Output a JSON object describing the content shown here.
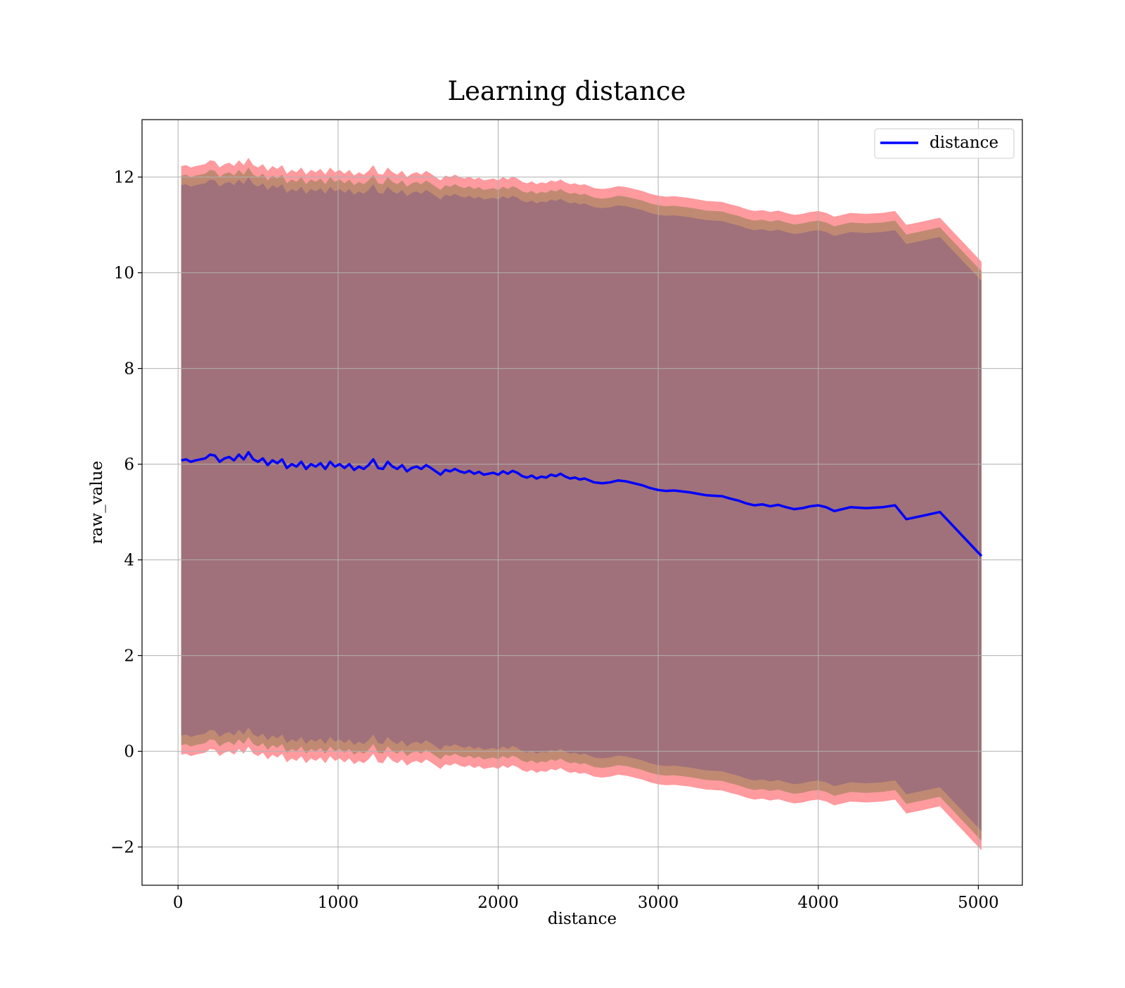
{
  "chart_data": {
    "type": "area",
    "title": "Learning distance",
    "xlabel": "distance",
    "ylabel": "raw_value",
    "xlim": [
      -225,
      5275
    ],
    "ylim": [
      -2.8,
      13.2
    ],
    "xticks": [
      0,
      1000,
      2000,
      3000,
      4000,
      5000
    ],
    "xtick_labels": [
      "0",
      "1000",
      "2000",
      "3000",
      "4000",
      "5000"
    ],
    "yticks": [
      -2,
      0,
      2,
      4,
      6,
      8,
      10,
      12
    ],
    "ytick_labels": [
      "−2",
      "0",
      "2",
      "4",
      "6",
      "8",
      "10",
      "12"
    ],
    "grid": true,
    "legend": {
      "position": "top-right",
      "entries": [
        "distance"
      ]
    },
    "colors": {
      "line": "#0000ff",
      "band_outer": "#ff9a9f",
      "band_middle": "#c08a72",
      "band_inner": "#a0717a",
      "grid": "#b0b0b0"
    },
    "band_offsets": {
      "outer": 6.15,
      "middle": 5.95,
      "inner": 5.75
    },
    "series": [
      {
        "name": "distance",
        "x": [
          20,
          50,
          80,
          110,
          140,
          170,
          200,
          230,
          260,
          290,
          320,
          350,
          380,
          410,
          440,
          470,
          500,
          530,
          560,
          590,
          620,
          650,
          680,
          710,
          740,
          770,
          800,
          830,
          860,
          890,
          920,
          950,
          980,
          1010,
          1040,
          1070,
          1100,
          1130,
          1160,
          1190,
          1220,
          1250,
          1280,
          1310,
          1340,
          1370,
          1400,
          1430,
          1460,
          1490,
          1520,
          1550,
          1580,
          1610,
          1640,
          1670,
          1700,
          1730,
          1760,
          1790,
          1820,
          1850,
          1880,
          1910,
          1940,
          1970,
          2000,
          2030,
          2060,
          2090,
          2120,
          2150,
          2180,
          2210,
          2240,
          2270,
          2300,
          2330,
          2360,
          2390,
          2420,
          2450,
          2480,
          2510,
          2540,
          2570,
          2600,
          2650,
          2700,
          2750,
          2800,
          2850,
          2900,
          2950,
          3000,
          3050,
          3100,
          3150,
          3200,
          3250,
          3300,
          3350,
          3400,
          3450,
          3500,
          3550,
          3600,
          3650,
          3700,
          3750,
          3800,
          3850,
          3900,
          3950,
          4000,
          4050,
          4100,
          4150,
          4200,
          4300,
          4400,
          4480,
          4550,
          4650,
          4760,
          5020
        ],
        "values": [
          6.08,
          6.1,
          6.05,
          6.08,
          6.1,
          6.12,
          6.2,
          6.18,
          6.05,
          6.12,
          6.15,
          6.08,
          6.2,
          6.1,
          6.25,
          6.1,
          6.05,
          6.12,
          5.98,
          6.08,
          6.02,
          6.1,
          5.92,
          6.0,
          5.95,
          6.05,
          5.9,
          6.0,
          5.95,
          6.02,
          5.9,
          6.05,
          5.95,
          6.0,
          5.92,
          6.0,
          5.88,
          5.95,
          5.9,
          5.98,
          6.1,
          5.92,
          5.9,
          6.05,
          5.95,
          5.9,
          5.98,
          5.85,
          5.92,
          5.95,
          5.9,
          5.98,
          5.92,
          5.85,
          5.78,
          5.88,
          5.85,
          5.9,
          5.85,
          5.82,
          5.86,
          5.8,
          5.84,
          5.78,
          5.8,
          5.82,
          5.78,
          5.85,
          5.8,
          5.86,
          5.82,
          5.75,
          5.72,
          5.76,
          5.7,
          5.74,
          5.72,
          5.78,
          5.75,
          5.8,
          5.74,
          5.7,
          5.72,
          5.68,
          5.7,
          5.66,
          5.62,
          5.6,
          5.62,
          5.66,
          5.64,
          5.6,
          5.56,
          5.5,
          5.46,
          5.44,
          5.45,
          5.43,
          5.41,
          5.38,
          5.35,
          5.34,
          5.33,
          5.28,
          5.24,
          5.18,
          5.14,
          5.16,
          5.12,
          5.15,
          5.1,
          5.06,
          5.08,
          5.12,
          5.14,
          5.1,
          5.02,
          5.06,
          5.1,
          5.08,
          5.1,
          5.14,
          4.85,
          4.92,
          5.0,
          4.08
        ]
      }
    ]
  }
}
